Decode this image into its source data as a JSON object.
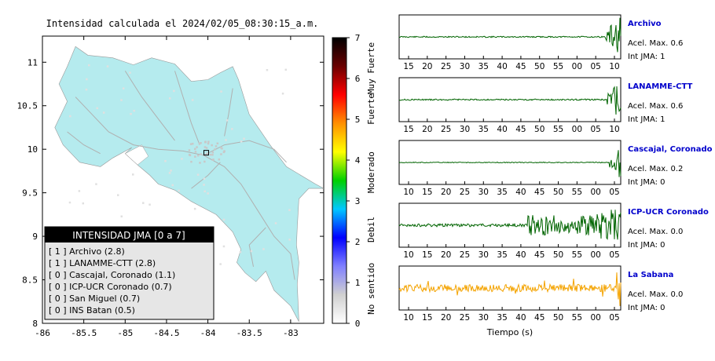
{
  "map": {
    "title": "Intensidad calculada el 2024/02/05_08:30:15_a.m.",
    "x_ticks": [
      -86,
      -85.5,
      -85,
      -84.5,
      -84,
      -83.5,
      -83
    ],
    "y_ticks": [
      8,
      8.5,
      9,
      9.5,
      10,
      10.5,
      11
    ],
    "xlim": [
      -86,
      -82.6
    ],
    "ylim": [
      8,
      11.3
    ],
    "land_color": "#b5ebee",
    "station_lon": -84.02,
    "station_lat": 9.96
  },
  "colorbar": {
    "ticks": [
      0,
      1,
      2,
      3,
      4,
      5,
      6,
      7
    ],
    "labels": [
      "Muy Fuerte",
      "Fuerte",
      "Moderado",
      "Debil",
      "No sentido"
    ],
    "colors": [
      "#ffffff",
      "#d0d0d0",
      "#8080ff",
      "#0000ff",
      "#00c8ff",
      "#00d000",
      "#ffff00",
      "#ff9000",
      "#ff0000",
      "#6a0000",
      "#000000"
    ]
  },
  "legend": {
    "title": "INTENSIDAD JMA [0 a 7]",
    "items": [
      "[ 1 ] Archivo (2.8)",
      "[ 1 ] LANAMME-CTT (2.8)",
      "[ 0 ] Cascajal, Coronado (1.1)",
      "[ 0 ] ICP-UCR Coronado (0.7)",
      "[ 0 ] San Miguel (0.7)",
      "[ 0 ] INS Batan (0.5)"
    ]
  },
  "chart_data": [
    {
      "type": "map",
      "title": "Intensidad calculada el 2024/02/05_08:30:15_a.m.",
      "xlim": [
        -86,
        -82.6
      ],
      "ylim": [
        8,
        11.3
      ],
      "colorbar_range": [
        0,
        7
      ],
      "legend_title": "INTENSIDAD JMA [0 a 7]",
      "stations": [
        {
          "name": "Archivo",
          "intensity": 2.8,
          "jma": 1
        },
        {
          "name": "LANAMME-CTT",
          "intensity": 2.8,
          "jma": 1
        },
        {
          "name": "Cascajal, Coronado",
          "intensity": 1.1,
          "jma": 0
        },
        {
          "name": "ICP-UCR Coronado",
          "intensity": 0.7,
          "jma": 0
        },
        {
          "name": "San Miguel",
          "intensity": 0.7,
          "jma": 0
        },
        {
          "name": "INS Batan",
          "intensity": 0.5,
          "jma": 0
        }
      ]
    },
    {
      "type": "line",
      "xlabel": "Tiempo (s)",
      "traces": [
        {
          "station": "Archivo",
          "accel_label": "Acel. Max. 0.6",
          "jma_label": "Int JMA: 1",
          "color": "#006400",
          "ticks": [
            "15",
            "20",
            "25",
            "30",
            "35",
            "40",
            "45",
            "50",
            "55",
            "00",
            "05",
            "10"
          ],
          "onset": 0.93,
          "noise": 0.03
        },
        {
          "station": "LANAMME-CTT",
          "accel_label": "Acel. Max. 0.6",
          "jma_label": "Int JMA: 1",
          "color": "#006400",
          "ticks": [
            "15",
            "20",
            "25",
            "30",
            "35",
            "40",
            "45",
            "50",
            "55",
            "00",
            "05",
            "10"
          ],
          "onset": 0.93,
          "noise": 0.04
        },
        {
          "station": "Cascajal, Coronado",
          "accel_label": "Acel. Max. 0.2",
          "jma_label": "Int JMA: 0",
          "color": "#006400",
          "ticks": [
            "10",
            "15",
            "20",
            "25",
            "30",
            "35",
            "40",
            "45",
            "50",
            "55",
            "00",
            "05"
          ],
          "onset": 0.95,
          "noise": 0.0
        },
        {
          "station": "ICP-UCR Coronado",
          "accel_label": "Acel. Max. 0.0",
          "jma_label": "Int JMA: 0",
          "color": "#006400",
          "ticks": [
            "10",
            "15",
            "20",
            "25",
            "30",
            "35",
            "40",
            "45",
            "50",
            "55",
            "00",
            "05"
          ],
          "onset": 0.6,
          "noise": 0.15
        },
        {
          "station": "La Sabana",
          "accel_label": "Acel. Max. 0.0",
          "jma_label": "Int JMA: 0",
          "color": "#f4a300",
          "ticks": [
            "10",
            "15",
            "20",
            "25",
            "30",
            "35",
            "40",
            "45",
            "50",
            "55",
            "00",
            "05"
          ],
          "onset": 0.99,
          "noise": 0.2
        }
      ]
    }
  ]
}
